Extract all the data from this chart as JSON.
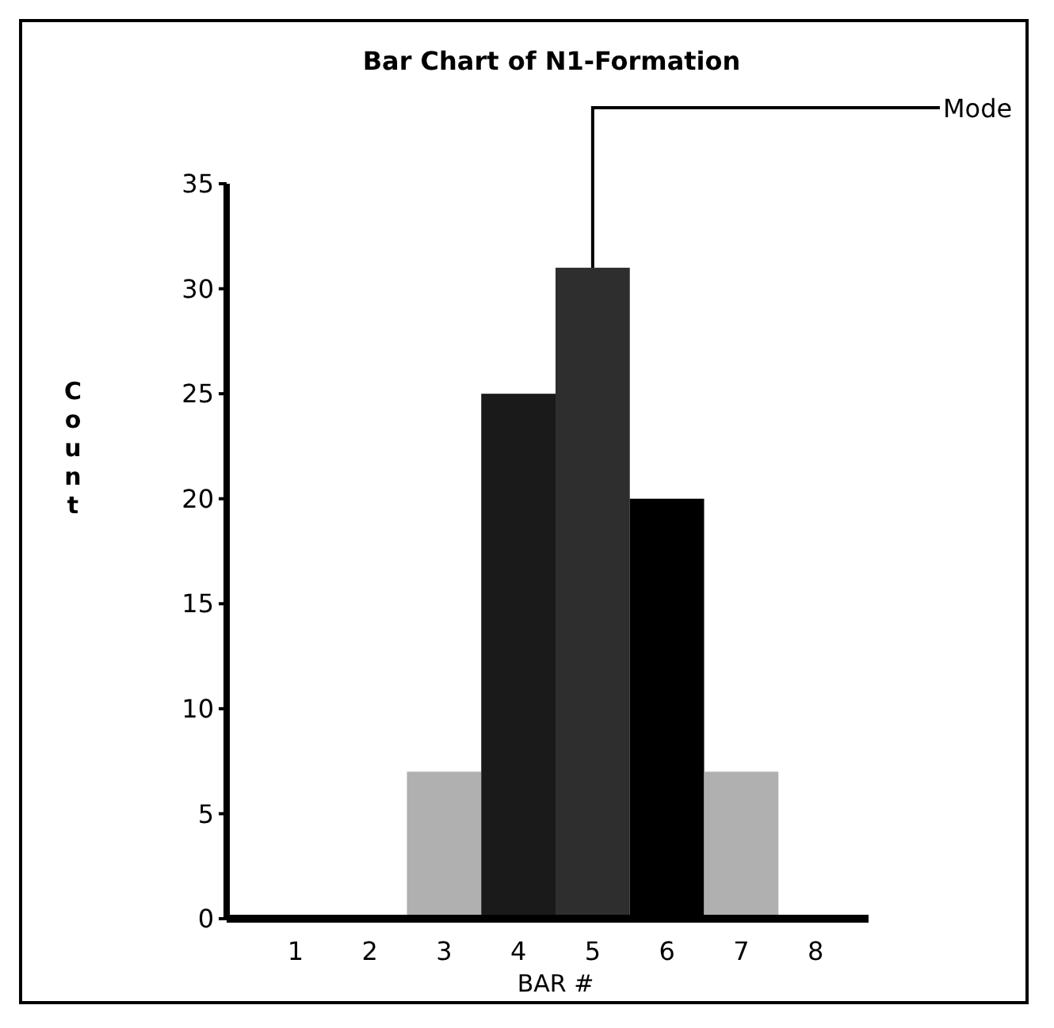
{
  "chart_data": {
    "type": "bar",
    "title": "Bar Chart of N1-Formation",
    "xlabel": "BAR #",
    "ylabel": "Count",
    "categories": [
      "1",
      "2",
      "3",
      "4",
      "5",
      "6",
      "7",
      "8"
    ],
    "values": [
      0,
      0,
      7,
      25,
      31,
      20,
      7,
      0
    ],
    "colors": [
      "#b0b0b0",
      "#b0b0b0",
      "#b0b0b0",
      "#1a1a1a",
      "#2e2e2e",
      "#000000",
      "#b0b0b0",
      "#b0b0b0"
    ],
    "ylim": [
      0,
      35
    ],
    "yticks": [
      0,
      5,
      10,
      15,
      20,
      25,
      30,
      35
    ],
    "annotations": [
      {
        "text": "Mode",
        "x": "5",
        "y": 31
      }
    ]
  }
}
